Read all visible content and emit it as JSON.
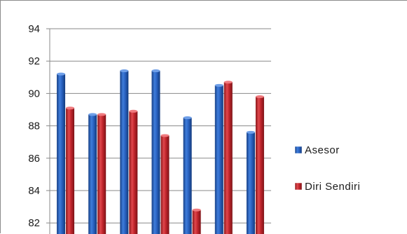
{
  "chart_data": {
    "type": "bar",
    "categories": [
      "",
      "",
      "",
      "",
      "",
      "",
      ""
    ],
    "series": [
      {
        "name": "Asesor",
        "color": "#1f5fc0",
        "values": [
          91.2,
          88.7,
          91.4,
          91.4,
          88.5,
          90.5,
          87.6
        ]
      },
      {
        "name": "Diri Sendiri",
        "color": "#c0242b",
        "values": [
          89.1,
          88.7,
          88.9,
          87.4,
          82.8,
          90.7,
          89.8
        ]
      }
    ],
    "yticks": [
      "94",
      "92",
      "90",
      "88",
      "86",
      "84",
      "82"
    ],
    "ylim": [
      81.5,
      94
    ],
    "grid": true,
    "legend": "right",
    "title": "",
    "xlabel": "",
    "ylabel": ""
  }
}
